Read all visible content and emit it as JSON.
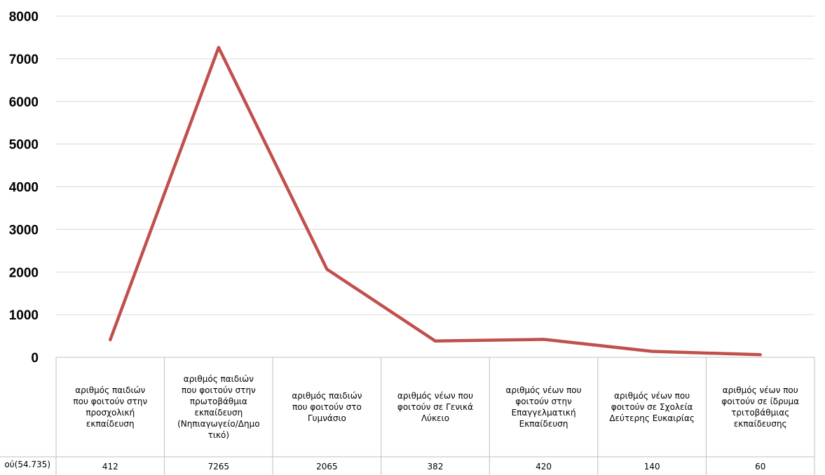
{
  "chart_data": {
    "type": "line",
    "categories": [
      "αριθμός παιδιών που φοιτούν στην προσχολική εκπαίδευση",
      "αριθμός παιδιών που φοιτούν στην πρωτοβάθμια εκπαίδευση (Νηπιαγωγείο/Δημοτικό)",
      "αριθμός παιδιών που φοιτούν στο Γυμνάσιο",
      "αριθμός νέων που φοιτούν σε Γενικά Λύκειο",
      "αριθμός νέων που φοιτούν στην Επαγγελματική Εκπαίδευση",
      "αριθμός νέων που φοιτούν σε Σχολεία Δεύτερης Ευκαιρίας",
      "αριθμός νέων που φοιτούν σε ίδρυμα τριτοβάθμιας εκπαίδευσης"
    ],
    "category_lines": [
      [
        "αριθμός παιδιών",
        "που φοιτούν στην",
        "προσχολική",
        "εκπαίδευση"
      ],
      [
        "αριθμός παιδιών",
        "που φοιτούν στην",
        "πρωτοβάθμια",
        "εκπαίδευση",
        "(Νηπιαγωγείο/Δημο",
        "τικό)"
      ],
      [
        "αριθμός παιδιών",
        "που φοιτούν στο",
        "Γυμνάσιο"
      ],
      [
        "αριθμός νέων που",
        "φοιτούν σε Γενικά",
        "Λύκειο"
      ],
      [
        "αριθμός νέων που",
        "φοιτούν στην",
        "Επαγγελματική",
        "Εκπαίδευση"
      ],
      [
        "αριθμός νέων που",
        "φοιτούν σε Σχολεία",
        "Δεύτερης Ευκαιρίας"
      ],
      [
        "αριθμός νέων που",
        "φοιτούν σε ίδρυμα",
        "τριτοβάθμιας",
        "εκπαίδευσης"
      ]
    ],
    "series": [
      {
        "name": "ού(54.735)",
        "values": [
          412,
          7265,
          2065,
          382,
          420,
          140,
          60
        ],
        "color": "#c0504d"
      }
    ],
    "data_table_row_label": "ού(54.735)",
    "yticks": [
      "0",
      "1000",
      "2000",
      "3000",
      "4000",
      "5000",
      "6000",
      "7000",
      "8000"
    ],
    "ylim": [
      0,
      8000
    ],
    "grid": true,
    "legend": "data-table",
    "title": "",
    "xlabel": "",
    "ylabel": ""
  },
  "colors": {
    "line": "#c0504d",
    "grid": "#d9d9d9",
    "table_border": "#bfbfbf"
  }
}
